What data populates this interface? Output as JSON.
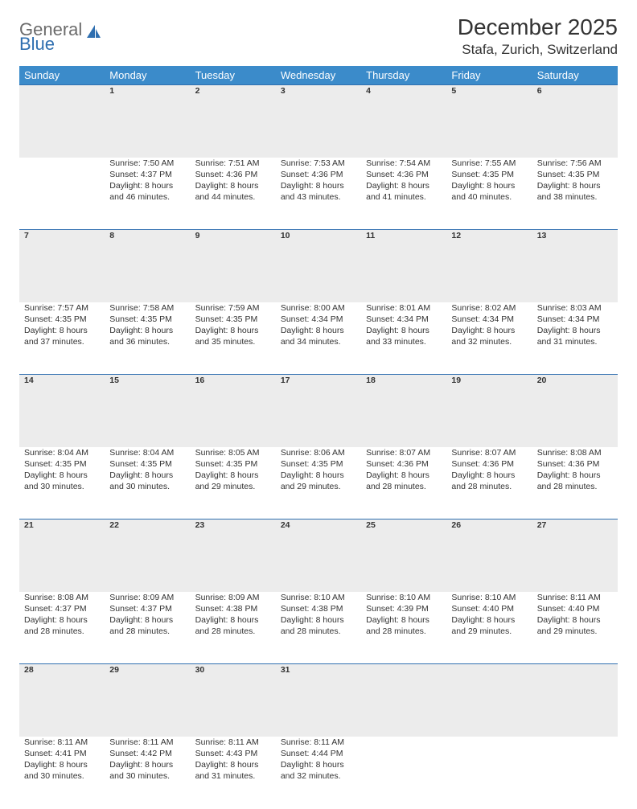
{
  "logo": {
    "text1": "General",
    "text2": "Blue"
  },
  "title": "December 2025",
  "location": "Stafa, Zurich, Switzerland",
  "colors": {
    "header_bg": "#3b8bca",
    "header_text": "#ffffff",
    "daynum_bg": "#ececec",
    "row_border": "#2f6fb0",
    "body_text": "#333333",
    "logo_gray": "#6b6b6b",
    "logo_blue": "#2f6fb0"
  },
  "columns": [
    "Sunday",
    "Monday",
    "Tuesday",
    "Wednesday",
    "Thursday",
    "Friday",
    "Saturday"
  ],
  "weeks": [
    {
      "nums": [
        "",
        "1",
        "2",
        "3",
        "4",
        "5",
        "6"
      ],
      "cells": [
        {},
        {
          "sunrise": "Sunrise: 7:50 AM",
          "sunset": "Sunset: 4:37 PM",
          "day1": "Daylight: 8 hours",
          "day2": "and 46 minutes."
        },
        {
          "sunrise": "Sunrise: 7:51 AM",
          "sunset": "Sunset: 4:36 PM",
          "day1": "Daylight: 8 hours",
          "day2": "and 44 minutes."
        },
        {
          "sunrise": "Sunrise: 7:53 AM",
          "sunset": "Sunset: 4:36 PM",
          "day1": "Daylight: 8 hours",
          "day2": "and 43 minutes."
        },
        {
          "sunrise": "Sunrise: 7:54 AM",
          "sunset": "Sunset: 4:36 PM",
          "day1": "Daylight: 8 hours",
          "day2": "and 41 minutes."
        },
        {
          "sunrise": "Sunrise: 7:55 AM",
          "sunset": "Sunset: 4:35 PM",
          "day1": "Daylight: 8 hours",
          "day2": "and 40 minutes."
        },
        {
          "sunrise": "Sunrise: 7:56 AM",
          "sunset": "Sunset: 4:35 PM",
          "day1": "Daylight: 8 hours",
          "day2": "and 38 minutes."
        }
      ]
    },
    {
      "nums": [
        "7",
        "8",
        "9",
        "10",
        "11",
        "12",
        "13"
      ],
      "cells": [
        {
          "sunrise": "Sunrise: 7:57 AM",
          "sunset": "Sunset: 4:35 PM",
          "day1": "Daylight: 8 hours",
          "day2": "and 37 minutes."
        },
        {
          "sunrise": "Sunrise: 7:58 AM",
          "sunset": "Sunset: 4:35 PM",
          "day1": "Daylight: 8 hours",
          "day2": "and 36 minutes."
        },
        {
          "sunrise": "Sunrise: 7:59 AM",
          "sunset": "Sunset: 4:35 PM",
          "day1": "Daylight: 8 hours",
          "day2": "and 35 minutes."
        },
        {
          "sunrise": "Sunrise: 8:00 AM",
          "sunset": "Sunset: 4:34 PM",
          "day1": "Daylight: 8 hours",
          "day2": "and 34 minutes."
        },
        {
          "sunrise": "Sunrise: 8:01 AM",
          "sunset": "Sunset: 4:34 PM",
          "day1": "Daylight: 8 hours",
          "day2": "and 33 minutes."
        },
        {
          "sunrise": "Sunrise: 8:02 AM",
          "sunset": "Sunset: 4:34 PM",
          "day1": "Daylight: 8 hours",
          "day2": "and 32 minutes."
        },
        {
          "sunrise": "Sunrise: 8:03 AM",
          "sunset": "Sunset: 4:34 PM",
          "day1": "Daylight: 8 hours",
          "day2": "and 31 minutes."
        }
      ]
    },
    {
      "nums": [
        "14",
        "15",
        "16",
        "17",
        "18",
        "19",
        "20"
      ],
      "cells": [
        {
          "sunrise": "Sunrise: 8:04 AM",
          "sunset": "Sunset: 4:35 PM",
          "day1": "Daylight: 8 hours",
          "day2": "and 30 minutes."
        },
        {
          "sunrise": "Sunrise: 8:04 AM",
          "sunset": "Sunset: 4:35 PM",
          "day1": "Daylight: 8 hours",
          "day2": "and 30 minutes."
        },
        {
          "sunrise": "Sunrise: 8:05 AM",
          "sunset": "Sunset: 4:35 PM",
          "day1": "Daylight: 8 hours",
          "day2": "and 29 minutes."
        },
        {
          "sunrise": "Sunrise: 8:06 AM",
          "sunset": "Sunset: 4:35 PM",
          "day1": "Daylight: 8 hours",
          "day2": "and 29 minutes."
        },
        {
          "sunrise": "Sunrise: 8:07 AM",
          "sunset": "Sunset: 4:36 PM",
          "day1": "Daylight: 8 hours",
          "day2": "and 28 minutes."
        },
        {
          "sunrise": "Sunrise: 8:07 AM",
          "sunset": "Sunset: 4:36 PM",
          "day1": "Daylight: 8 hours",
          "day2": "and 28 minutes."
        },
        {
          "sunrise": "Sunrise: 8:08 AM",
          "sunset": "Sunset: 4:36 PM",
          "day1": "Daylight: 8 hours",
          "day2": "and 28 minutes."
        }
      ]
    },
    {
      "nums": [
        "21",
        "22",
        "23",
        "24",
        "25",
        "26",
        "27"
      ],
      "cells": [
        {
          "sunrise": "Sunrise: 8:08 AM",
          "sunset": "Sunset: 4:37 PM",
          "day1": "Daylight: 8 hours",
          "day2": "and 28 minutes."
        },
        {
          "sunrise": "Sunrise: 8:09 AM",
          "sunset": "Sunset: 4:37 PM",
          "day1": "Daylight: 8 hours",
          "day2": "and 28 minutes."
        },
        {
          "sunrise": "Sunrise: 8:09 AM",
          "sunset": "Sunset: 4:38 PM",
          "day1": "Daylight: 8 hours",
          "day2": "and 28 minutes."
        },
        {
          "sunrise": "Sunrise: 8:10 AM",
          "sunset": "Sunset: 4:38 PM",
          "day1": "Daylight: 8 hours",
          "day2": "and 28 minutes."
        },
        {
          "sunrise": "Sunrise: 8:10 AM",
          "sunset": "Sunset: 4:39 PM",
          "day1": "Daylight: 8 hours",
          "day2": "and 28 minutes."
        },
        {
          "sunrise": "Sunrise: 8:10 AM",
          "sunset": "Sunset: 4:40 PM",
          "day1": "Daylight: 8 hours",
          "day2": "and 29 minutes."
        },
        {
          "sunrise": "Sunrise: 8:11 AM",
          "sunset": "Sunset: 4:40 PM",
          "day1": "Daylight: 8 hours",
          "day2": "and 29 minutes."
        }
      ]
    },
    {
      "nums": [
        "28",
        "29",
        "30",
        "31",
        "",
        "",
        ""
      ],
      "cells": [
        {
          "sunrise": "Sunrise: 8:11 AM",
          "sunset": "Sunset: 4:41 PM",
          "day1": "Daylight: 8 hours",
          "day2": "and 30 minutes."
        },
        {
          "sunrise": "Sunrise: 8:11 AM",
          "sunset": "Sunset: 4:42 PM",
          "day1": "Daylight: 8 hours",
          "day2": "and 30 minutes."
        },
        {
          "sunrise": "Sunrise: 8:11 AM",
          "sunset": "Sunset: 4:43 PM",
          "day1": "Daylight: 8 hours",
          "day2": "and 31 minutes."
        },
        {
          "sunrise": "Sunrise: 8:11 AM",
          "sunset": "Sunset: 4:44 PM",
          "day1": "Daylight: 8 hours",
          "day2": "and 32 minutes."
        },
        {},
        {},
        {}
      ]
    }
  ]
}
